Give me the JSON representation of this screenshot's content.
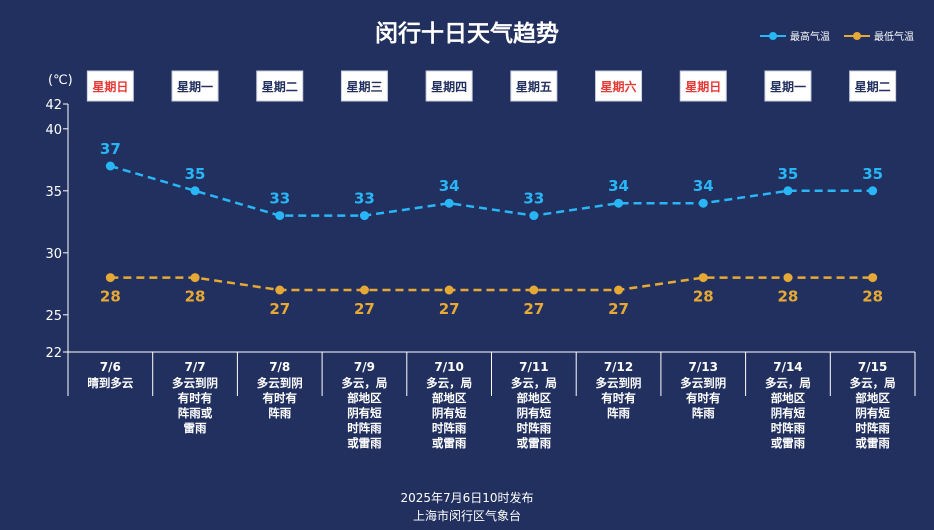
{
  "chart_data": {
    "type": "line",
    "title": "闵行十日天气趋势",
    "unit_label": "(℃)",
    "ylim": [
      22,
      42
    ],
    "yticks": [
      22,
      25,
      30,
      35,
      40,
      42
    ],
    "weekdays": [
      {
        "label": "星期日",
        "weekend": true
      },
      {
        "label": "星期一",
        "weekend": false
      },
      {
        "label": "星期二",
        "weekend": false
      },
      {
        "label": "星期三",
        "weekend": false
      },
      {
        "label": "星期四",
        "weekend": false
      },
      {
        "label": "星期五",
        "weekend": false
      },
      {
        "label": "星期六",
        "weekend": true
      },
      {
        "label": "星期日",
        "weekend": true
      },
      {
        "label": "星期一",
        "weekend": false
      },
      {
        "label": "星期二",
        "weekend": false
      }
    ],
    "categories": [
      "7/6",
      "7/7",
      "7/8",
      "7/9",
      "7/10",
      "7/11",
      "7/12",
      "7/13",
      "7/14",
      "7/15"
    ],
    "weather": [
      [
        "晴到多云"
      ],
      [
        "多云到阴",
        "有时有",
        "阵雨或",
        "雷雨"
      ],
      [
        "多云到阴",
        "有时有",
        "阵雨"
      ],
      [
        "多云，局",
        "部地区",
        "阴有短",
        "时阵雨",
        "或雷雨"
      ],
      [
        "多云，局",
        "部地区",
        "阴有短",
        "时阵雨",
        "或雷雨"
      ],
      [
        "多云，局",
        "部地区",
        "阴有短",
        "时阵雨",
        "或雷雨"
      ],
      [
        "多云到阴",
        "有时有",
        "阵雨"
      ],
      [
        "多云到阴",
        "有时有",
        "阵雨"
      ],
      [
        "多云，局",
        "部地区",
        "阴有短",
        "时阵雨",
        "或雷雨"
      ],
      [
        "多云，局",
        "部地区",
        "阴有短",
        "时阵雨",
        "或雷雨"
      ]
    ],
    "series": [
      {
        "name": "最高气温",
        "color": "#29b6f6",
        "values": [
          37,
          35,
          33,
          33,
          34,
          33,
          34,
          34,
          35,
          35
        ]
      },
      {
        "name": "最低气温",
        "color": "#e6a935",
        "values": [
          28,
          28,
          27,
          27,
          27,
          27,
          27,
          28,
          28,
          28
        ]
      }
    ],
    "weekend_color": "#e53935",
    "weekday_color": "#22305f"
  },
  "footer": {
    "line1": "2025年7月6日10时发布",
    "line2": "上海市闵行区气象台"
  }
}
